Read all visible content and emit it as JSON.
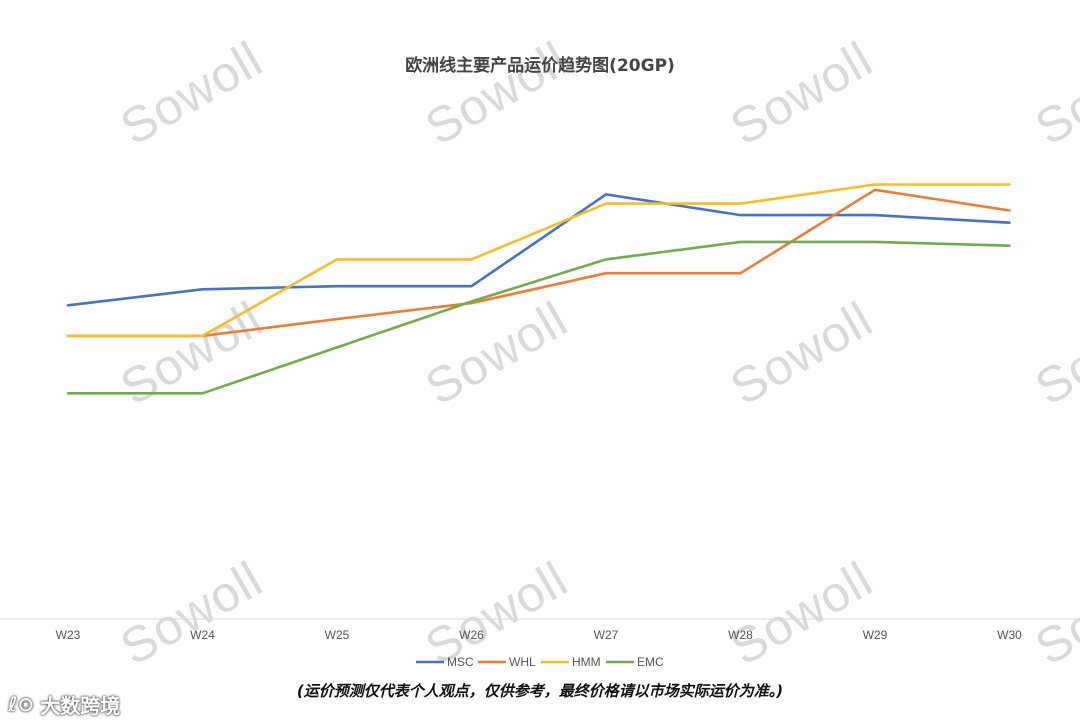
{
  "chart_data": {
    "type": "line",
    "title": "欧洲线主要产品运价趋势图(20GP)",
    "xlabel": "",
    "ylabel": "",
    "categories": [
      "W23",
      "W24",
      "W25",
      "W26",
      "W27",
      "W28",
      "W29",
      "W30"
    ],
    "series": [
      {
        "name": "MSC",
        "color": "#4472C4",
        "values": [
          41.0,
          43.1,
          43.5,
          43.5,
          55.5,
          52.8,
          52.8,
          51.8
        ]
      },
      {
        "name": "WHL",
        "color": "#ED7D31",
        "values": [
          37.0,
          37.0,
          39.2,
          41.3,
          45.2,
          45.2,
          56.1,
          53.4
        ]
      },
      {
        "name": "HMM",
        "color": "#F5BD1E",
        "values": [
          37.0,
          37.0,
          47.0,
          47.0,
          54.3,
          54.3,
          56.8,
          56.8
        ]
      },
      {
        "name": "EMC",
        "color": "#70AD47",
        "values": [
          29.5,
          29.5,
          35.5,
          41.5,
          47.0,
          49.3,
          49.3,
          48.8
        ]
      }
    ],
    "ylim": [
      0,
      70
    ],
    "grid": false,
    "legend": "bottom"
  },
  "watermark": "Sowoll",
  "note": "(运价预测仅代表个人观点，仅供参考，最终价格请以市场实际运价为准。)",
  "brand": {
    "logo": "ℓ⊙",
    "name": "大数跨境"
  }
}
